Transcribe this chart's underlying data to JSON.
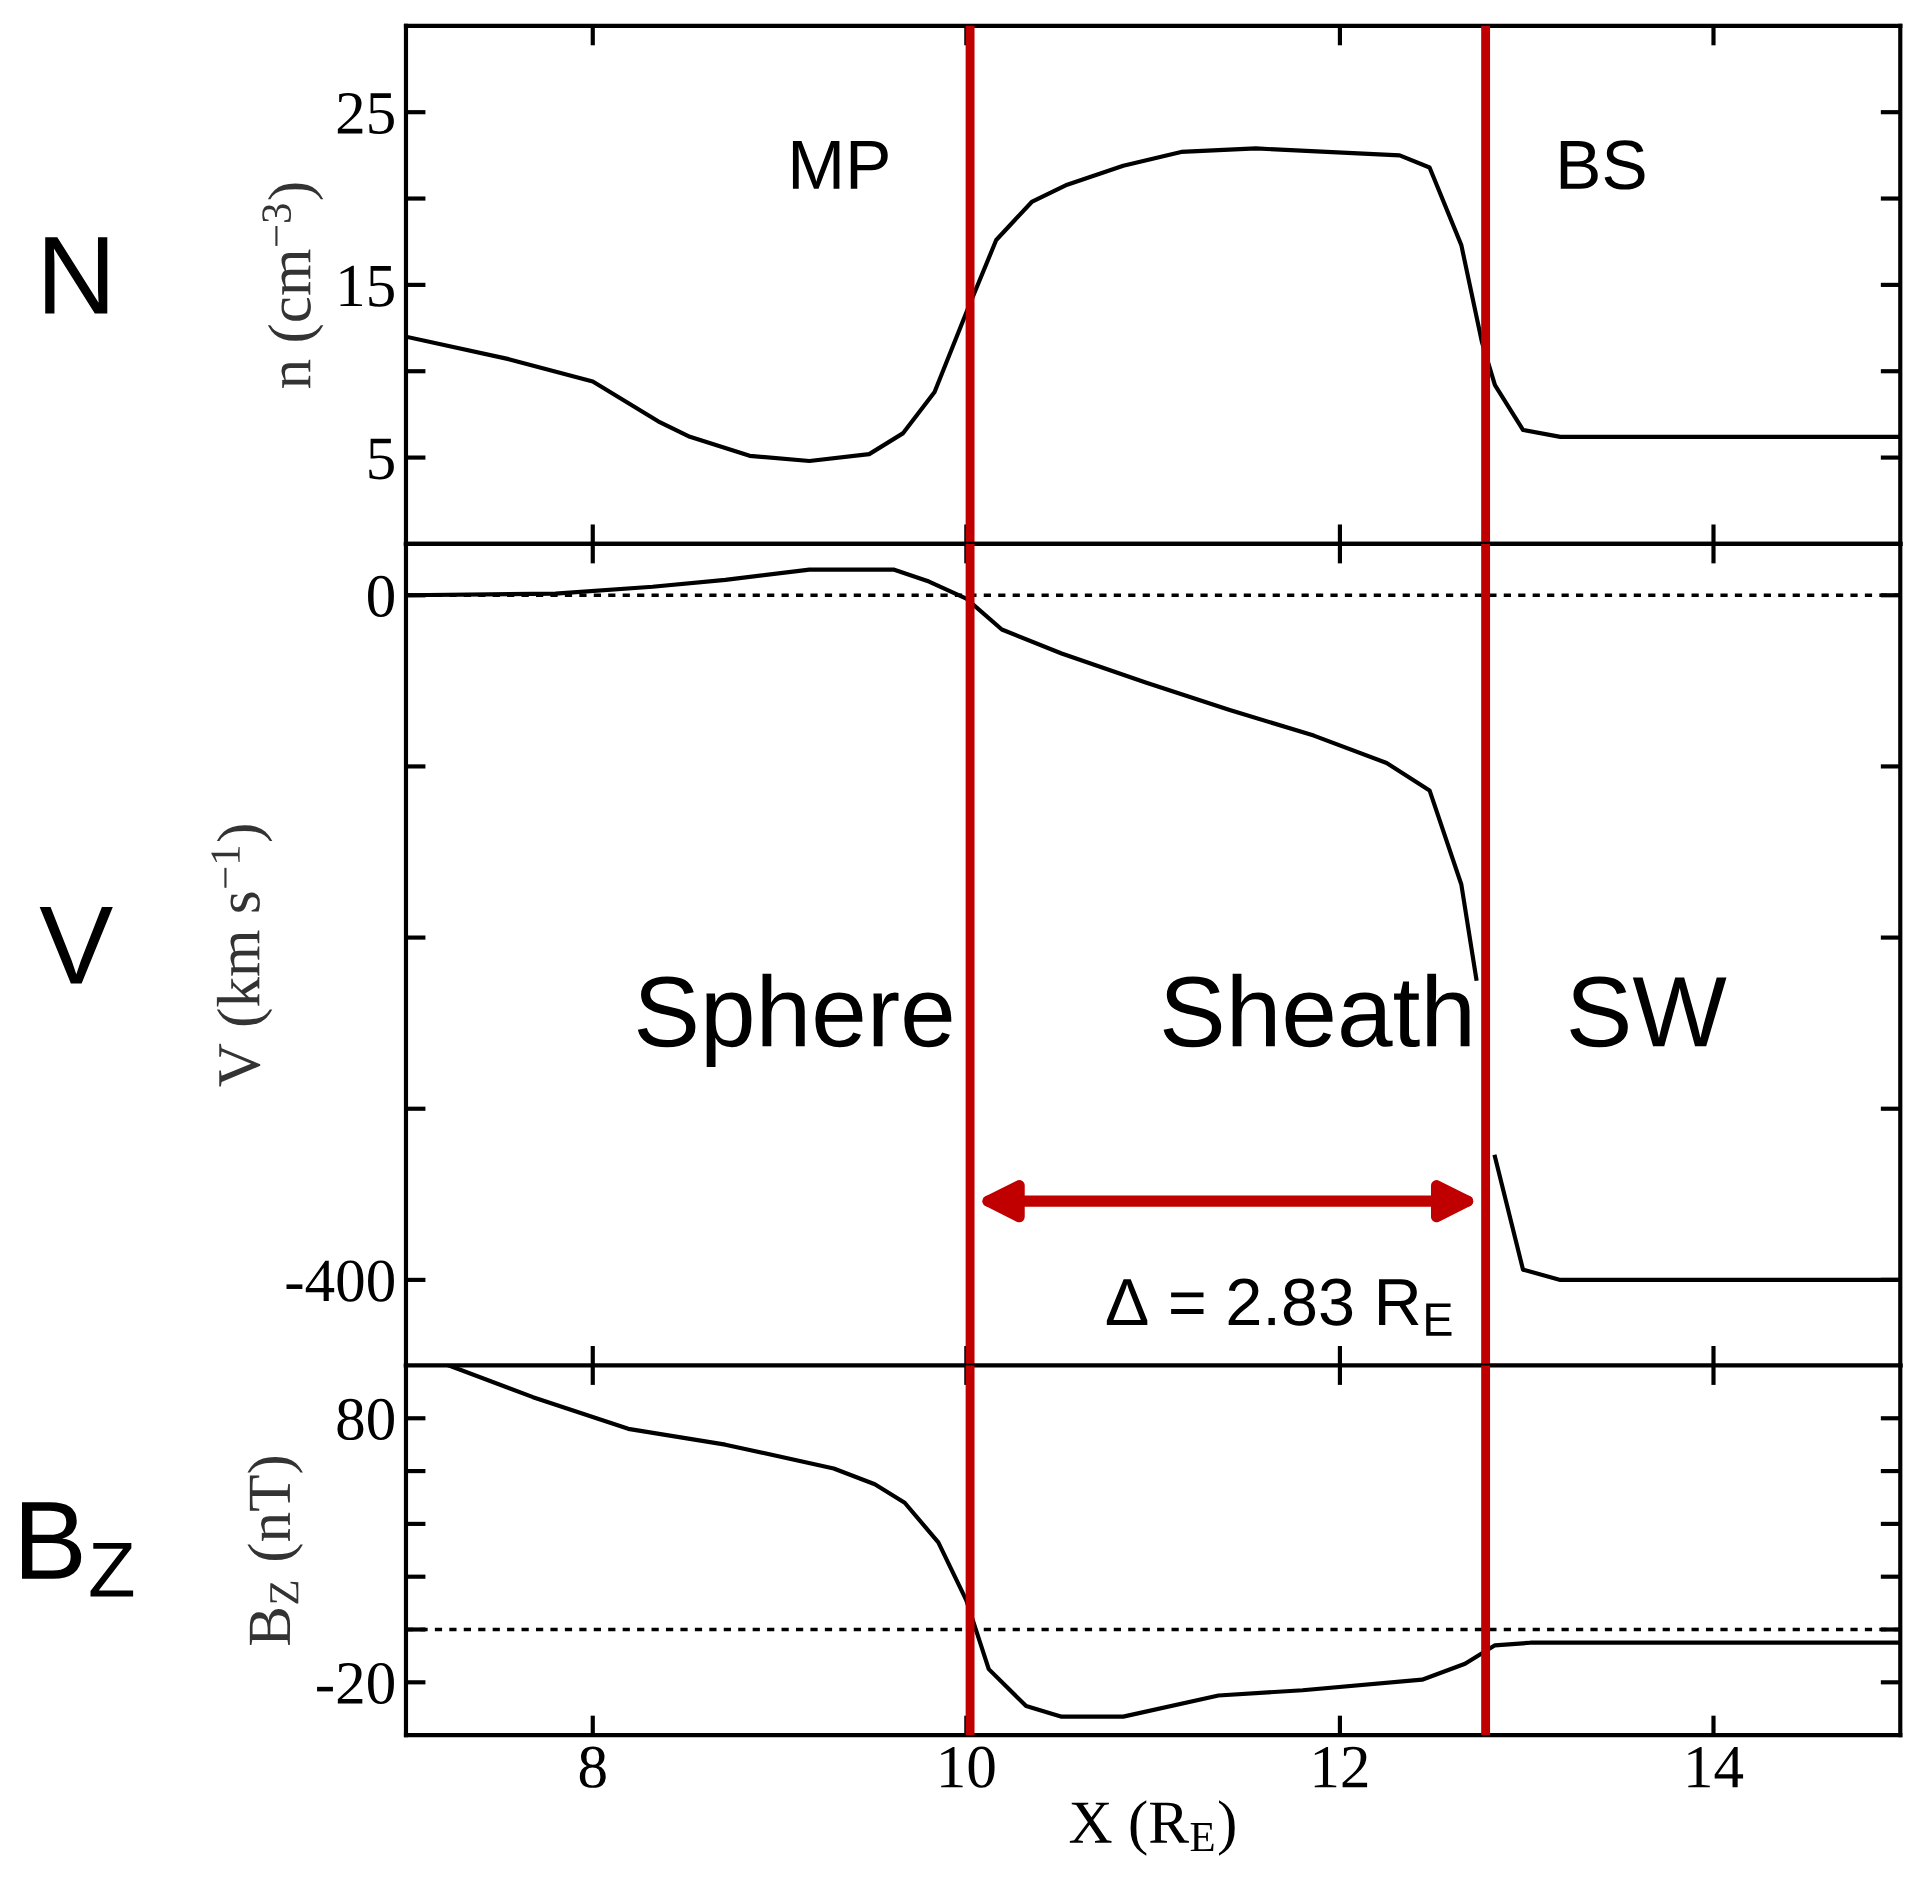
{
  "chart_data": [
    {
      "type": "line",
      "ylabel": "n (cm$^{−3}$)",
      "xlim": [
        7,
        15
      ],
      "xticks": [
        8,
        10,
        12,
        14
      ],
      "ylim": [
        0,
        30
      ],
      "yticks": [
        5,
        {
          "value": 10,
          "label": null
        },
        15,
        {
          "value": 20,
          "label": null
        },
        25
      ],
      "tick_labels": "y",
      "grid": false,
      "x": [
        7.0,
        7.55,
        8.0,
        8.35,
        8.52,
        8.84,
        9.16,
        9.48,
        9.66,
        9.83,
        10.0,
        10.16,
        10.35,
        10.54,
        10.84,
        11.15,
        11.55,
        11.93,
        12.32,
        12.48,
        12.65,
        12.76,
        12.83,
        12.98,
        13.18,
        15.0
      ],
      "series": [
        {
          "color": "#000000",
          "values": [
            12.0,
            10.7,
            9.4,
            7.1,
            6.2,
            5.1,
            4.8,
            5.2,
            6.4,
            8.8,
            13.4,
            17.6,
            19.8,
            20.8,
            21.9,
            22.7,
            22.9,
            22.7,
            22.5,
            21.8,
            17.3,
            11.7,
            9.2,
            6.6,
            6.2,
            6.2
          ]
        }
      ],
      "ref_lines": [
        {
          "axis": "x",
          "value": 10.02,
          "color": "#c00000",
          "line_style": "solid"
        },
        {
          "axis": "x",
          "value": 12.78,
          "color": "#c00000",
          "line_style": "solid"
        }
      ],
      "annotations": [
        "N",
        "MP",
        "BS"
      ]
    },
    {
      "type": "line",
      "ylabel": "V (km s$^{−1}$)",
      "xlim": [
        7,
        15
      ],
      "xticks": [
        8,
        10,
        12,
        14
      ],
      "ylim": [
        -450,
        30
      ],
      "yticks": [
        {
          "value": -400,
          "label": "-400"
        },
        {
          "value": -300,
          "label": null
        },
        {
          "value": -200,
          "label": null
        },
        {
          "value": -100,
          "label": null
        },
        0
      ],
      "tick_labels": "y",
      "grid": false,
      "x": [
        7.0,
        7.8,
        8.32,
        8.71,
        9.16,
        9.61,
        9.8,
        10.0,
        10.19,
        10.51,
        10.96,
        11.41,
        11.86,
        12.25,
        12.48,
        12.65,
        12.73,
        12.78,
        12.83,
        12.98,
        13.18,
        15.0
      ],
      "series": [
        {
          "color": "#000000",
          "values": [
            0,
            1,
            5,
            9,
            15,
            15,
            8,
            -2,
            -20,
            -34,
            -51,
            -67,
            -82,
            -98,
            -114,
            -169,
            -224,
            null,
            -328,
            -394,
            -400,
            -400
          ]
        }
      ],
      "ref_lines": [
        {
          "axis": "y",
          "value": 0,
          "color": "#000000",
          "line_style": "dotted"
        },
        {
          "axis": "x",
          "value": 10.02,
          "color": "#c00000",
          "line_style": "solid"
        },
        {
          "axis": "x",
          "value": 12.78,
          "color": "#c00000",
          "line_style": "solid"
        }
      ],
      "annotations": [
        "V",
        "Sphere",
        "Sheath",
        "SW",
        "Δ = 2.83 R$_{E}$"
      ]
    },
    {
      "type": "line",
      "ylabel": "B$_{Z}$ (nT)",
      "xlabel": "X (R$_{E}$)",
      "xlim": [
        7,
        15
      ],
      "xticks": [
        8,
        10,
        12,
        14
      ],
      "ylim": [
        -40,
        100
      ],
      "yticks": [
        {
          "value": -20,
          "label": "-20"
        },
        {
          "value": 0,
          "label": null
        },
        {
          "value": 20,
          "label": null
        },
        {
          "value": 40,
          "label": null
        },
        {
          "value": 60,
          "label": null
        },
        80
      ],
      "grid": false,
      "x": [
        7.23,
        7.68,
        8.19,
        8.71,
        9.29,
        9.51,
        9.67,
        9.85,
        10.0,
        10.12,
        10.32,
        10.51,
        10.84,
        11.35,
        11.8,
        12.44,
        12.67,
        12.83,
        13.02,
        15.0
      ],
      "series": [
        {
          "color": "#000000",
          "values": [
            100,
            88,
            76,
            70,
            61,
            55,
            48,
            33,
            11,
            -15,
            -29,
            -33,
            -33,
            -25,
            -23,
            -19,
            -13,
            -6,
            -5,
            -5
          ]
        }
      ],
      "ref_lines": [
        {
          "axis": "y",
          "value": 0,
          "color": "#000000",
          "line_style": "dotted"
        },
        {
          "axis": "x",
          "value": 10.02,
          "color": "#c00000",
          "line_style": "solid"
        },
        {
          "axis": "x",
          "value": 12.78,
          "color": "#c00000",
          "line_style": "solid"
        }
      ],
      "annotations": [
        "B$_{Z}$"
      ]
    }
  ]
}
